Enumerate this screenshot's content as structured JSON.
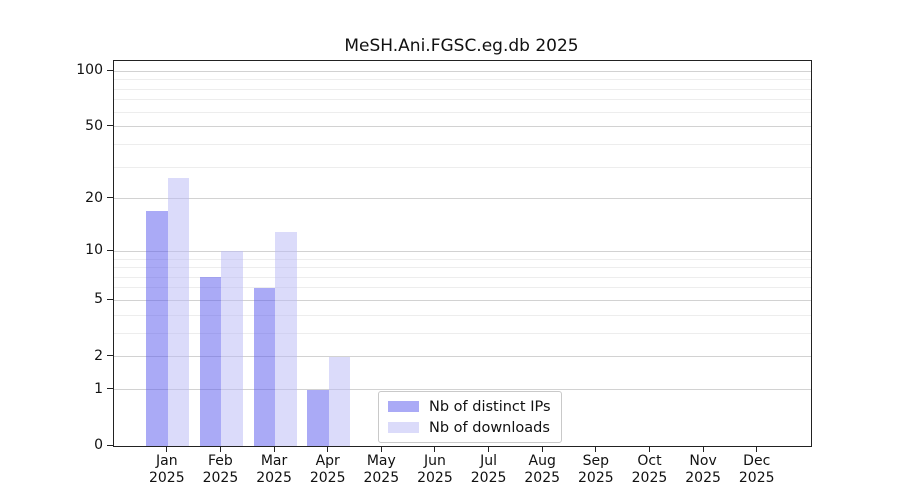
{
  "title": "MeSH.Ani.FGSC.eg.db 2025",
  "chart_data": {
    "type": "bar",
    "categories": [
      "Jan 2025",
      "Feb 2025",
      "Mar 2025",
      "Apr 2025",
      "May 2025",
      "Jun 2025",
      "Jul 2025",
      "Aug 2025",
      "Sep 2025",
      "Oct 2025",
      "Nov 2025",
      "Dec 2025"
    ],
    "x_tick_months": [
      "Jan",
      "Feb",
      "Mar",
      "Apr",
      "May",
      "Jun",
      "Jul",
      "Aug",
      "Sep",
      "Oct",
      "Nov",
      "Dec"
    ],
    "x_tick_year": "2025",
    "series": [
      {
        "name": "Nb of distinct IPs",
        "values": [
          17,
          7,
          6,
          1,
          0,
          0,
          0,
          0,
          0,
          0,
          0,
          0
        ],
        "bar_color": "rgba(85,85,237,0.5)",
        "legend_color": "#aaaaf6"
      },
      {
        "name": "Nb of downloads",
        "values": [
          26,
          10,
          13,
          2,
          0,
          0,
          0,
          0,
          0,
          0,
          0,
          0
        ],
        "bar_color": "rgba(183,183,245,0.5)",
        "legend_color": "#dbdbfa"
      }
    ],
    "yscale": "log10(1+x)",
    "ylim": [
      0,
      113
    ],
    "yticks_major": [
      0,
      1,
      2,
      5,
      10,
      20,
      50,
      100
    ],
    "ytick_labels": [
      "0",
      "1",
      "2",
      "5",
      "10",
      "20",
      "50",
      "100"
    ],
    "yticks_minor": [
      3,
      4,
      6,
      7,
      8,
      9,
      30,
      40,
      60,
      70,
      80,
      90
    ],
    "grid": "horizontal",
    "legend_position": "inside-bottom-center",
    "xlabel": "",
    "ylabel": ""
  },
  "legend": {
    "items": [
      {
        "label": "Nb of distinct IPs"
      },
      {
        "label": "Nb of downloads"
      }
    ]
  },
  "colors": {
    "bar_distinct_ips": "#aaaaf6",
    "bar_downloads": "#dbdbfa",
    "grid_major": "#d2d2d2",
    "grid_minor": "#ededed",
    "spine": "#222222",
    "background": "#ffffff"
  }
}
